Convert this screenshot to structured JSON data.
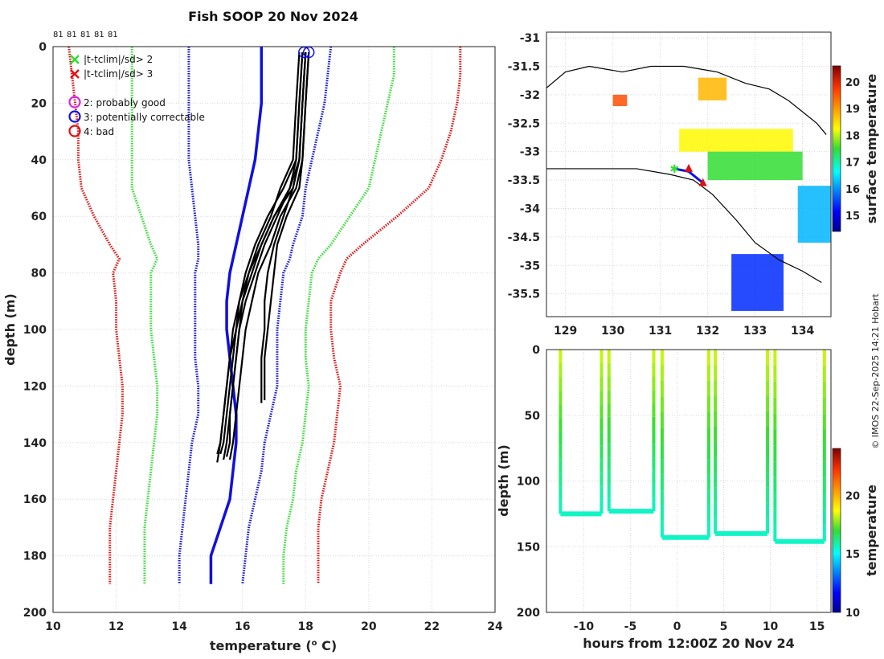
{
  "title": "Fish SOOP 20 Nov 2024",
  "counts": [
    "81",
    "81",
    "81",
    "81",
    "81"
  ],
  "credit": "© IMOS 22-Sep-2025 14:21 Hobart",
  "legend": {
    "flag2": "|t-tclim|/sd> 2",
    "flag3": "|t-tclim|/sd> 3",
    "qc2": "2: probably good",
    "qc3": "3: potentially correctable",
    "qc4": "4: bad"
  },
  "colors": {
    "green": "#33dd33",
    "red": "#e01010",
    "blue": "#1010e0",
    "magenta": "#dd22dd",
    "black": "#000000"
  },
  "chart_data": [
    {
      "type": "line",
      "title": "Fish SOOP 20 Nov 2024",
      "xlabel": "temperature (° C)",
      "ylabel": "depth (m)",
      "xlim": [
        10,
        24
      ],
      "ylim": [
        200,
        0
      ],
      "xticks": [
        10,
        12,
        14,
        16,
        18,
        20,
        22,
        24
      ],
      "yticks": [
        0,
        20,
        40,
        60,
        80,
        100,
        120,
        140,
        160,
        180,
        200
      ],
      "depths": [
        0,
        10,
        20,
        30,
        40,
        50,
        60,
        70,
        75,
        80,
        90,
        100,
        110,
        120,
        130,
        140,
        150,
        160,
        170,
        180,
        190
      ],
      "series": [
        {
          "name": "clim -3sd",
          "color": "red",
          "style": "dotted",
          "values": [
            10.5,
            10.6,
            10.7,
            10.8,
            10.8,
            10.9,
            11.3,
            11.8,
            12.1,
            11.9,
            12.0,
            12.0,
            12.1,
            12.2,
            12.2,
            12.1,
            12.0,
            11.9,
            11.8,
            11.8,
            11.8
          ]
        },
        {
          "name": "clim -2sd",
          "color": "green",
          "style": "dotted",
          "values": [
            12.5,
            12.5,
            12.5,
            12.5,
            12.5,
            12.5,
            12.8,
            13.1,
            13.3,
            13.1,
            13.1,
            13.1,
            13.2,
            13.3,
            13.3,
            13.2,
            13.1,
            13.0,
            12.9,
            12.9,
            12.9
          ]
        },
        {
          "name": "clim mean -0.5sd",
          "color": "blue",
          "style": "dotted",
          "values": [
            14.3,
            14.3,
            14.3,
            14.3,
            14.3,
            14.4,
            14.5,
            14.6,
            14.6,
            14.5,
            14.5,
            14.5,
            14.5,
            14.6,
            14.6,
            14.4,
            14.3,
            14.2,
            14.1,
            14.0,
            14.0
          ]
        },
        {
          "name": "clim mean +0.5sd",
          "color": "blue",
          "style": "dotted",
          "values": [
            18.8,
            18.7,
            18.6,
            18.4,
            18.2,
            18.0,
            17.9,
            17.6,
            17.5,
            17.3,
            17.2,
            17.1,
            17.1,
            17.1,
            16.9,
            16.7,
            16.6,
            16.4,
            16.2,
            16.1,
            16.0
          ]
        },
        {
          "name": "clim +2sd",
          "color": "green",
          "style": "dotted",
          "values": [
            20.8,
            20.8,
            20.6,
            20.4,
            20.2,
            20.0,
            19.4,
            18.8,
            18.4,
            18.2,
            18.1,
            18.0,
            18.0,
            18.1,
            18.0,
            17.9,
            17.7,
            17.6,
            17.4,
            17.3,
            17.3
          ]
        },
        {
          "name": "clim +3sd",
          "color": "red",
          "style": "dotted",
          "values": [
            22.9,
            22.9,
            22.8,
            22.6,
            22.3,
            21.9,
            20.9,
            19.8,
            19.3,
            19.1,
            18.8,
            18.8,
            18.9,
            19.1,
            19.0,
            18.9,
            18.7,
            18.5,
            18.4,
            18.4,
            18.4
          ]
        },
        {
          "name": "clim mean",
          "color": "blue",
          "style": "solid",
          "values": [
            16.6,
            16.6,
            16.6,
            16.5,
            16.4,
            16.2,
            16.0,
            15.8,
            15.7,
            15.6,
            15.5,
            15.5,
            15.6,
            15.7,
            15.8,
            15.8,
            15.7,
            15.6,
            15.3,
            15.0,
            15.0
          ]
        }
      ],
      "profiles": [
        {
          "name": "profile 1",
          "depths": [
            2,
            20,
            40,
            50,
            60,
            70,
            80,
            90,
            100,
            110,
            120,
            130,
            140,
            144
          ],
          "values": [
            17.9,
            17.8,
            17.7,
            17.3,
            16.8,
            16.4,
            16.1,
            15.9,
            15.8,
            15.7,
            15.6,
            15.5,
            15.4,
            15.3
          ]
        },
        {
          "name": "profile 2",
          "depths": [
            2,
            20,
            40,
            50,
            60,
            70,
            80,
            90,
            100,
            110,
            120,
            130,
            140,
            146
          ],
          "values": [
            18.0,
            17.9,
            17.8,
            17.5,
            17.0,
            16.6,
            16.3,
            16.0,
            15.9,
            15.8,
            15.7,
            15.6,
            15.5,
            15.4
          ]
        },
        {
          "name": "profile 3",
          "depths": [
            2,
            20,
            40,
            50,
            60,
            70,
            80,
            90,
            100,
            110,
            120,
            130,
            140,
            146
          ],
          "values": [
            18.1,
            18.0,
            17.9,
            17.7,
            17.2,
            16.9,
            16.5,
            16.3,
            16.1,
            16.0,
            15.9,
            15.8,
            15.7,
            15.6
          ]
        },
        {
          "name": "profile 4",
          "depths": [
            2,
            20,
            40,
            50,
            60,
            70,
            80,
            90,
            100,
            110,
            120,
            130,
            140,
            144
          ],
          "values": [
            17.8,
            17.7,
            17.6,
            17.2,
            16.9,
            16.5,
            16.2,
            16.0,
            15.8,
            15.6,
            15.5,
            15.4,
            15.3,
            15.2
          ]
        },
        {
          "name": "profile 5",
          "depths": [
            2,
            20,
            40,
            50,
            60,
            70,
            80,
            90,
            100,
            110,
            120,
            125
          ],
          "values": [
            18.1,
            18.0,
            17.9,
            17.8,
            17.4,
            17.1,
            17.0,
            16.9,
            16.8,
            16.7,
            16.7,
            16.7
          ]
        },
        {
          "name": "profile 6",
          "depths": [
            2,
            20,
            40,
            50,
            60,
            70,
            80,
            90,
            100,
            110,
            120,
            126
          ],
          "values": [
            18.0,
            17.9,
            17.8,
            17.6,
            17.3,
            17.0,
            16.8,
            16.7,
            16.7,
            16.6,
            16.6,
            16.6
          ]
        },
        {
          "name": "profile 7",
          "depths": [
            2,
            20,
            40,
            50,
            60,
            70,
            80,
            90,
            100,
            110,
            120,
            130,
            140,
            145
          ],
          "values": [
            17.9,
            17.8,
            17.7,
            17.5,
            17.1,
            16.7,
            16.4,
            16.1,
            15.9,
            15.8,
            15.7,
            15.6,
            15.6,
            15.5
          ]
        },
        {
          "name": "profile 8",
          "depths": [
            2,
            20,
            40,
            50,
            60,
            70,
            80,
            90,
            100,
            110,
            120,
            130,
            140,
            147
          ],
          "values": [
            18.0,
            17.9,
            17.8,
            17.6,
            17.0,
            16.6,
            16.2,
            15.9,
            15.7,
            15.6,
            15.5,
            15.4,
            15.3,
            15.2
          ]
        }
      ],
      "qc_markers": [
        {
          "value": 17.95,
          "depth": 2,
          "flag": 3
        },
        {
          "value": 18.1,
          "depth": 2,
          "flag": 3
        }
      ]
    },
    {
      "type": "heatmap",
      "subtype": "map",
      "xlim": [
        128.6,
        134.6
      ],
      "ylim": [
        -35.9,
        -30.9
      ],
      "xticks": [
        129,
        130,
        131,
        132,
        133,
        134
      ],
      "yticks": [
        -31,
        -31.5,
        -32,
        -32.5,
        -33,
        -33.5,
        -34,
        -34.5,
        -35,
        -35.5
      ],
      "colorbar": {
        "label": "surface temperature",
        "range": [
          14.4,
          20.6
        ],
        "ticks": [
          15,
          16,
          17,
          18,
          19,
          20
        ]
      },
      "coast": [
        [
          128.6,
          -31.88
        ],
        [
          129.0,
          -31.6
        ],
        [
          129.5,
          -31.5
        ],
        [
          130.2,
          -31.6
        ],
        [
          130.8,
          -31.5
        ],
        [
          131.5,
          -31.5
        ],
        [
          132.2,
          -31.6
        ],
        [
          132.8,
          -31.8
        ],
        [
          133.3,
          -31.9
        ],
        [
          133.7,
          -32.1
        ],
        [
          134.0,
          -32.3
        ],
        [
          134.3,
          -32.5
        ],
        [
          134.5,
          -32.7
        ]
      ],
      "coast2": [
        [
          128.6,
          -33.3
        ],
        [
          129.5,
          -33.3
        ],
        [
          130.5,
          -33.3
        ],
        [
          131.2,
          -33.4
        ],
        [
          131.7,
          -33.5
        ],
        [
          132.1,
          -33.75
        ],
        [
          132.6,
          -34.2
        ],
        [
          133.0,
          -34.6
        ],
        [
          133.5,
          -34.9
        ],
        [
          134.0,
          -35.1
        ],
        [
          134.4,
          -35.3
        ]
      ],
      "patches": [
        {
          "lon": [
            131.4,
            133.8
          ],
          "lat": [
            -32.6,
            -33.0
          ],
          "temp": 18.3
        },
        {
          "lon": [
            132.0,
            134.0
          ],
          "lat": [
            -33.0,
            -33.5
          ],
          "temp": 17.5
        },
        {
          "lon": [
            131.8,
            132.4
          ],
          "lat": [
            -31.7,
            -32.1
          ],
          "temp": 18.8
        },
        {
          "lon": [
            130.0,
            130.3
          ],
          "lat": [
            -32.0,
            -32.2
          ],
          "temp": 19.6
        },
        {
          "lon": [
            133.9,
            134.6
          ],
          "lat": [
            -33.6,
            -34.6
          ],
          "temp": 16.2
        },
        {
          "lon": [
            132.5,
            133.6
          ],
          "lat": [
            -34.8,
            -35.8
          ],
          "temp": 15.4
        }
      ],
      "track": [
        {
          "lon": 131.3,
          "lat": -33.3
        },
        {
          "lon": 131.6,
          "lat": -33.35
        },
        {
          "lon": 131.9,
          "lat": -33.55
        }
      ],
      "track_flags": [
        {
          "lon": 131.3,
          "lat": -33.3,
          "kind": "green-star"
        },
        {
          "lon": 131.6,
          "lat": -33.3,
          "kind": "red-triangle"
        },
        {
          "lon": 131.9,
          "lat": -33.55,
          "kind": "red-triangle"
        }
      ]
    },
    {
      "type": "scatter",
      "xlabel": "hours from 12:00Z 20 Nov 24",
      "ylabel": "depth (m)",
      "xlim": [
        -14,
        16.5
      ],
      "ylim": [
        200,
        0
      ],
      "xticks": [
        -10,
        -5,
        0,
        5,
        10,
        15
      ],
      "yticks": [
        0,
        50,
        100,
        150,
        200
      ],
      "colorbar": {
        "label": "temperature",
        "range": [
          10,
          24
        ],
        "ticks": [
          10,
          15,
          20
        ]
      },
      "casts": [
        {
          "t_start": -12.8,
          "t_end": -8.2,
          "bottom": 125,
          "t_down": -12.5,
          "t_up": -8.1
        },
        {
          "t_start": -7.5,
          "t_end": -2.6,
          "bottom": 123,
          "t_down": -7.3,
          "t_up": -2.5
        },
        {
          "t_start": -1.5,
          "t_end": 3.5,
          "bottom": 143,
          "t_down": -1.6,
          "t_up": 3.4
        },
        {
          "t_start": 4.2,
          "t_end": 9.5,
          "bottom": 140,
          "t_down": 4.1,
          "t_up": 9.7
        },
        {
          "t_start": 10.6,
          "t_end": 15.7,
          "bottom": 146,
          "t_down": 10.5,
          "t_up": 15.8
        }
      ],
      "surface_temp": 18.3,
      "bottom_temp": 15.6
    }
  ]
}
